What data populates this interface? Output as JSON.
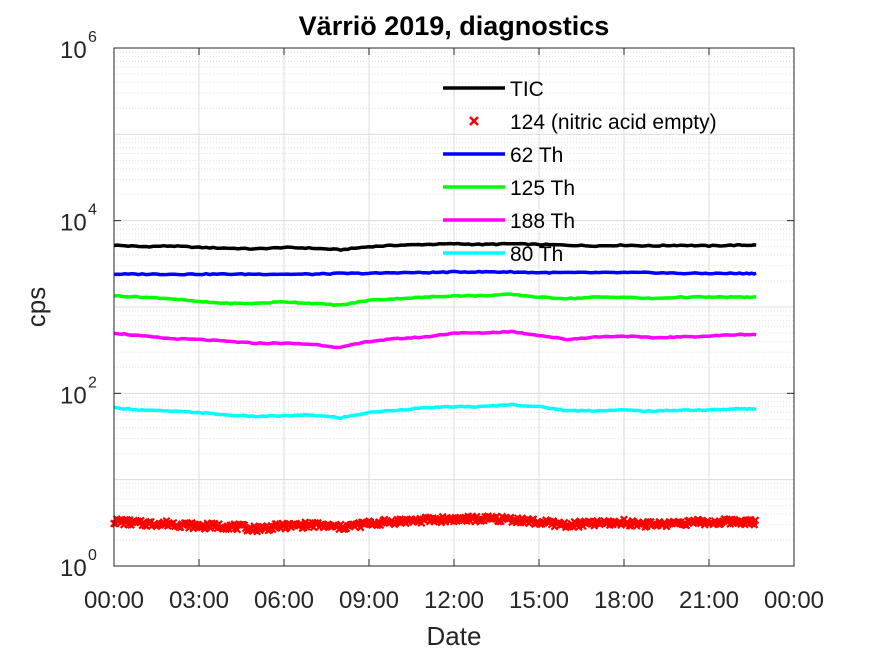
{
  "chart_data": {
    "type": "line",
    "title": "Värriö 2019, diagnostics",
    "xlabel": "Date",
    "ylabel": "cps",
    "y_scale": "log",
    "ylim": [
      1,
      1000000
    ],
    "y_ticks": [
      {
        "value": 1,
        "base": "10",
        "exp": "0"
      },
      {
        "value": 100,
        "base": "10",
        "exp": "2"
      },
      {
        "value": 10000,
        "base": "10",
        "exp": "4"
      },
      {
        "value": 1000000,
        "base": "10",
        "exp": "6"
      }
    ],
    "xlim": [
      "00:00",
      "24:00"
    ],
    "x_ticks": [
      "00:00",
      "03:00",
      "06:00",
      "09:00",
      "12:00",
      "15:00",
      "18:00",
      "21:00",
      "00:00"
    ],
    "grid": true,
    "legend": "top-right",
    "x": [
      "00:00",
      "01:00",
      "02:00",
      "03:00",
      "04:00",
      "05:00",
      "06:00",
      "07:00",
      "08:00",
      "09:00",
      "10:00",
      "11:00",
      "12:00",
      "13:00",
      "14:00",
      "15:00",
      "16:00",
      "17:00",
      "18:00",
      "19:00",
      "20:00",
      "21:00",
      "22:00",
      "22:40"
    ],
    "series": [
      {
        "name": "TIC",
        "color": "#000000",
        "style": "line",
        "values": [
          5200,
          5000,
          5100,
          4900,
          4800,
          4700,
          4900,
          4800,
          4600,
          5000,
          5200,
          5300,
          5400,
          5300,
          5400,
          5300,
          5200,
          5100,
          5200,
          5100,
          5200,
          5100,
          5200,
          5200
        ]
      },
      {
        "name": "124 (nitric acid empty)",
        "color": "#ff0000",
        "style": "marker",
        "values": [
          3.3,
          3.1,
          3.1,
          2.9,
          2.9,
          2.7,
          2.9,
          3.0,
          2.8,
          3.1,
          3.3,
          3.4,
          3.5,
          3.5,
          3.5,
          3.2,
          3.0,
          3.1,
          3.2,
          3.0,
          3.2,
          3.2,
          3.3,
          3.2
        ]
      },
      {
        "name": "62 Th",
        "color": "#0000ff",
        "style": "line",
        "values": [
          2400,
          2400,
          2400,
          2400,
          2400,
          2400,
          2400,
          2400,
          2450,
          2450,
          2500,
          2500,
          2550,
          2550,
          2550,
          2500,
          2500,
          2500,
          2500,
          2500,
          2450,
          2450,
          2450,
          2450
        ]
      },
      {
        "name": "125 Th",
        "color": "#00ff00",
        "style": "line",
        "values": [
          1350,
          1300,
          1250,
          1150,
          1100,
          1100,
          1150,
          1100,
          1050,
          1200,
          1250,
          1300,
          1350,
          1350,
          1400,
          1300,
          1250,
          1300,
          1300,
          1250,
          1300,
          1300,
          1300,
          1300
        ]
      },
      {
        "name": "188 Th",
        "color": "#ff00ff",
        "style": "line",
        "values": [
          500,
          460,
          430,
          420,
          400,
          380,
          380,
          370,
          340,
          400,
          430,
          450,
          500,
          500,
          520,
          470,
          420,
          450,
          460,
          440,
          450,
          460,
          480,
          480
        ]
      },
      {
        "name": "80 Th",
        "color": "#00ffff",
        "style": "line",
        "values": [
          68,
          64,
          62,
          60,
          56,
          54,
          55,
          56,
          52,
          60,
          64,
          68,
          70,
          70,
          74,
          70,
          63,
          63,
          64,
          62,
          64,
          64,
          66,
          66
        ]
      }
    ]
  }
}
